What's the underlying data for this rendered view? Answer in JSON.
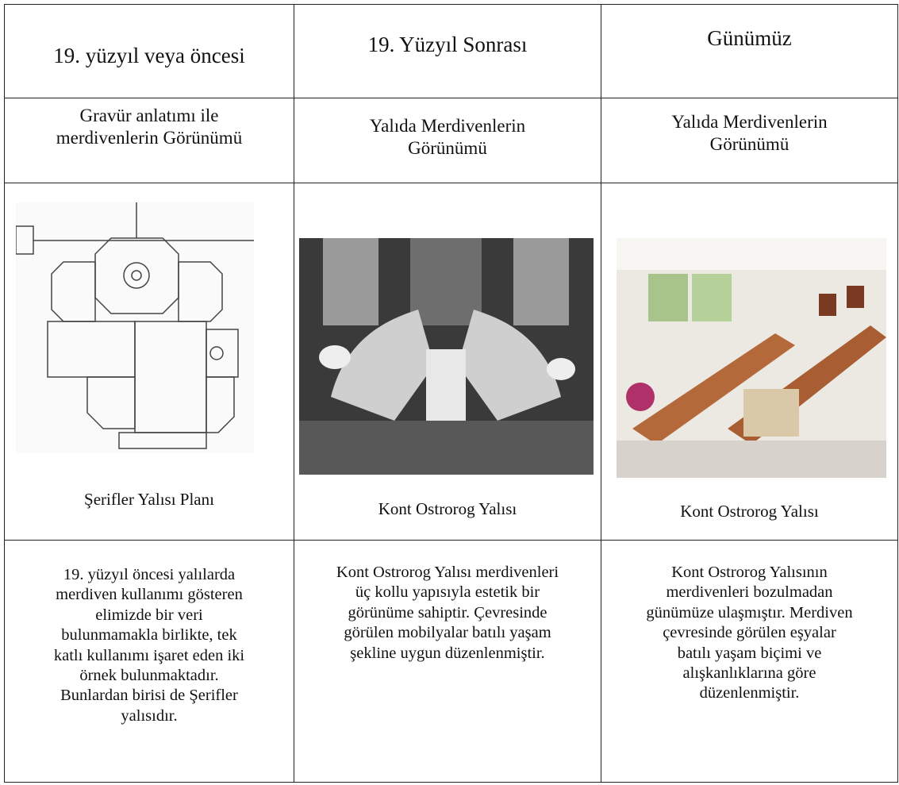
{
  "table": {
    "header": [
      "19. yüzyıl veya öncesi",
      "19. Yüzyıl Sonrası",
      "Günümüz"
    ],
    "subheader": [
      [
        "Gravür anlatımı ile",
        "merdivenlerin Görünümü"
      ],
      [
        "Yalıda Merdivenlerin",
        "Görünümü"
      ],
      [
        "Yalıda Merdivenlerin",
        "Görünümü"
      ]
    ],
    "captions": [
      "Şerifler Yalısı Planı",
      "Kont Ostrorog Yalısı",
      "Kont Ostrorog Yalısı"
    ],
    "descriptions": [
      [
        "19. yüzyıl öncesi yalılarda",
        "merdiven kullanımı gösteren",
        "elimizde bir veri",
        "bulunmamakla birlikte, tek",
        "katlı kullanımı işaret eden iki",
        "örnek bulunmaktadır.",
        "Bunlardan birisi de Şerifler",
        "yalısıdır."
      ],
      [
        "Kont Ostrorog Yalısı merdivenleri",
        "üç kollu yapısıyla estetik bir",
        "görünüme sahiptir. Çevresinde",
        "görülen mobilyalar batılı yaşam",
        "şekline uygun düzenlenmiştir."
      ],
      [
        "Kont Ostrorog Yalısının",
        "merdivenleri bozulmadan",
        "günümüze ulaşmıştır. Merdiven",
        "çevresinde görülen eşyalar",
        "batılı yaşam biçimi ve",
        "alışkanlıklarına göre",
        "düzenlenmiştir."
      ]
    ]
  }
}
